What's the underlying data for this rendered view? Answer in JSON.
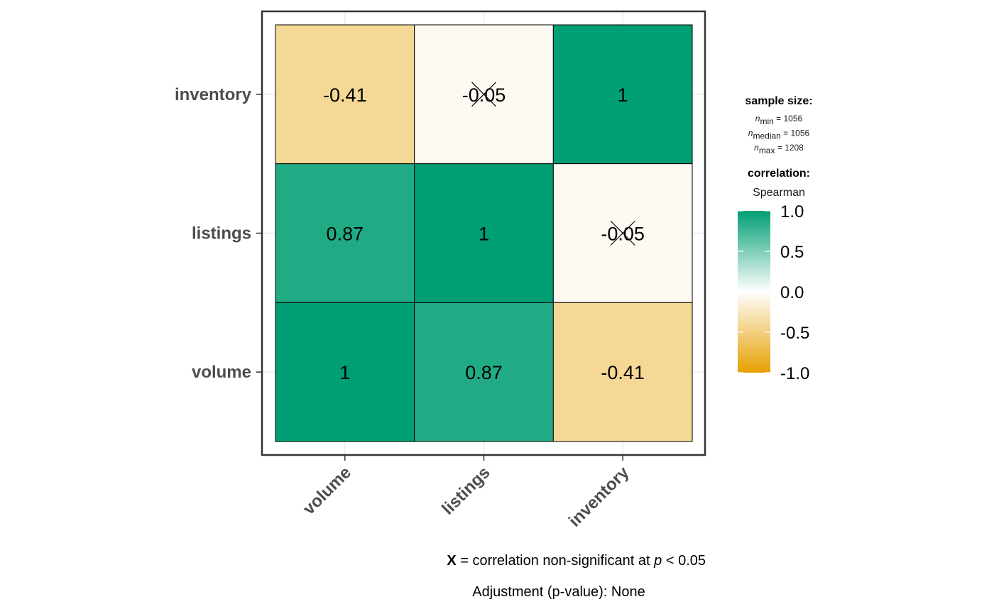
{
  "chart_data": {
    "type": "heatmap",
    "x_categories": [
      "volume",
      "listings",
      "inventory"
    ],
    "y_categories": [
      "volume",
      "listings",
      "inventory"
    ],
    "cells": [
      {
        "x": "volume",
        "y": "inventory",
        "value": -0.41,
        "label": "-0.41",
        "significant": true
      },
      {
        "x": "listings",
        "y": "inventory",
        "value": -0.05,
        "label": "-0.05",
        "significant": false
      },
      {
        "x": "inventory",
        "y": "inventory",
        "value": 1,
        "label": "1",
        "significant": true
      },
      {
        "x": "volume",
        "y": "listings",
        "value": 0.87,
        "label": "0.87",
        "significant": true
      },
      {
        "x": "listings",
        "y": "listings",
        "value": 1,
        "label": "1",
        "significant": true
      },
      {
        "x": "inventory",
        "y": "listings",
        "value": -0.05,
        "label": "-0.05",
        "significant": false
      },
      {
        "x": "volume",
        "y": "volume",
        "value": 1,
        "label": "1",
        "significant": true
      },
      {
        "x": "listings",
        "y": "volume",
        "value": 0.87,
        "label": "0.87",
        "significant": true
      },
      {
        "x": "inventory",
        "y": "volume",
        "value": -0.41,
        "label": "-0.41",
        "significant": true
      }
    ],
    "colors": {
      "low": "#E69F00",
      "mid": "#FFFFFF",
      "high": "#009E73",
      "grid": "#ebebeb",
      "panel_border": "#333333"
    },
    "legend": {
      "sample_size_title": "sample size:",
      "n_symbol": "n",
      "n_lines": [
        {
          "sub": "min",
          "text": " = 1056"
        },
        {
          "sub": "median",
          "text": " = 1056"
        },
        {
          "sub": "max",
          "text": " = 1208"
        }
      ],
      "correlation_title": "correlation:",
      "method": "Spearman",
      "range": [
        -1,
        1
      ],
      "ticks": [
        {
          "value": 1,
          "label": "1.0"
        },
        {
          "value": 0.5,
          "label": "0.5"
        },
        {
          "value": 0,
          "label": "0.0"
        },
        {
          "value": -0.5,
          "label": "-0.5"
        },
        {
          "value": -1,
          "label": "-1.0"
        }
      ]
    },
    "caption": {
      "line1": {
        "mark": "X",
        "text_a": " = correlation non-significant at ",
        "p": "p",
        "text_b": " < 0.05"
      },
      "line2": "Adjustment (p-value): None"
    }
  }
}
